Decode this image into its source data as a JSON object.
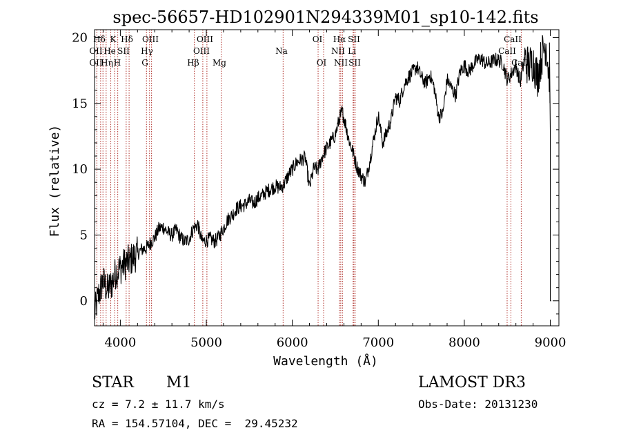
{
  "chart_data": {
    "type": "line",
    "title": "spec-56657-HD102901N294339M01_sp10-142.fits",
    "xlabel": "Wavelength (Å)",
    "ylabel": "Flux (relative)",
    "xlim": [
      3700,
      9100
    ],
    "ylim": [
      -1.9,
      20.6
    ],
    "x_ticks": [
      4000,
      5000,
      6000,
      7000,
      8000,
      9000
    ],
    "y_ticks": [
      0,
      5,
      10,
      15,
      20
    ],
    "grid": false,
    "series": [
      {
        "name": "spectrum",
        "x": [
          3700,
          3750,
          3800,
          3850,
          3900,
          3950,
          4000,
          4050,
          4100,
          4150,
          4200,
          4250,
          4300,
          4350,
          4400,
          4450,
          4500,
          4550,
          4600,
          4650,
          4700,
          4750,
          4800,
          4850,
          4900,
          4950,
          5000,
          5050,
          5100,
          5150,
          5200,
          5250,
          5300,
          5350,
          5400,
          5450,
          5500,
          5550,
          5600,
          5650,
          5700,
          5750,
          5800,
          5850,
          5900,
          5950,
          6000,
          6050,
          6100,
          6150,
          6200,
          6250,
          6300,
          6350,
          6400,
          6450,
          6500,
          6550,
          6580,
          6620,
          6650,
          6700,
          6750,
          6800,
          6850,
          6900,
          6950,
          7000,
          7050,
          7100,
          7150,
          7200,
          7250,
          7300,
          7350,
          7400,
          7450,
          7500,
          7550,
          7600,
          7650,
          7700,
          7750,
          7800,
          7850,
          7900,
          7950,
          8000,
          8050,
          8100,
          8150,
          8200,
          8250,
          8300,
          8350,
          8400,
          8450,
          8500,
          8550,
          8600,
          8650,
          8700,
          8750,
          8800,
          8850,
          8900,
          8950,
          9000
        ],
        "y": [
          -1.0,
          0.5,
          1.5,
          0.8,
          1.3,
          2.2,
          2.5,
          2.8,
          3.0,
          3.3,
          3.6,
          3.9,
          4.0,
          4.4,
          4.8,
          5.5,
          5.6,
          5.2,
          5.0,
          5.4,
          4.8,
          4.5,
          4.7,
          5.5,
          5.8,
          4.5,
          4.6,
          4.7,
          4.5,
          4.9,
          5.5,
          6.2,
          6.5,
          7.0,
          7.2,
          7.3,
          7.6,
          7.4,
          7.8,
          8.0,
          8.3,
          8.5,
          8.7,
          8.6,
          8.8,
          9.5,
          10.0,
          10.5,
          10.7,
          10.9,
          8.6,
          10.1,
          10.0,
          11.0,
          11.6,
          12.1,
          12.6,
          13.9,
          14.4,
          13.4,
          12.4,
          11.4,
          10.2,
          9.5,
          9.0,
          10.6,
          12.4,
          14.1,
          12.0,
          12.8,
          13.8,
          15.5,
          15.2,
          16.4,
          17.0,
          17.4,
          17.8,
          17.0,
          16.5,
          17.2,
          16.2,
          14.0,
          14.2,
          16.8,
          16.2,
          15.6,
          17.4,
          17.9,
          17.4,
          17.9,
          18.3,
          18.4,
          18.0,
          18.1,
          18.3,
          18.3,
          18.0,
          16.8,
          17.3,
          17.9,
          16.6,
          18.4,
          17.8,
          18.2,
          17.0,
          18.6,
          19.6,
          16.2
        ]
      }
    ],
    "spectral_lines": {
      "rows": [
        [
          "Hδ",
          "K",
          "Hδ",
          "OIII",
          "OIII",
          "OI",
          "Hα",
          "SII",
          "CaII"
        ],
        [
          "OII",
          "He",
          "SII",
          "Hγ",
          "OIII",
          "Na",
          "NII",
          "Li",
          "CaII"
        ],
        [
          "OII",
          "Hη",
          "H",
          "G",
          "Hβ",
          "Mg",
          "OI",
          "NII",
          "SII",
          "CaII"
        ]
      ],
      "wavelengths": [
        3727,
        3771,
        3798,
        3835,
        3889,
        3934,
        3970,
        4068,
        4102,
        4304,
        4340,
        4363,
        4861,
        4959,
        5007,
        5175,
        5893,
        6300,
        6364,
        6548,
        6563,
        6583,
        6707,
        6716,
        6731,
        8498,
        8542,
        8662
      ]
    },
    "annotations": {
      "object_class": "STAR",
      "subclass": "M1",
      "survey": "LAMOST DR3",
      "redshift": "cz = 7.2 ± 11.7 km/s",
      "obs_date": "Obs-Date: 20131230",
      "coordinates": "RA = 154.57104, DEC =  29.45232"
    }
  },
  "colors": {
    "spectrum": "#000000",
    "line_marker": "#b0302a",
    "axis": "#000000",
    "background": "#ffffff"
  }
}
